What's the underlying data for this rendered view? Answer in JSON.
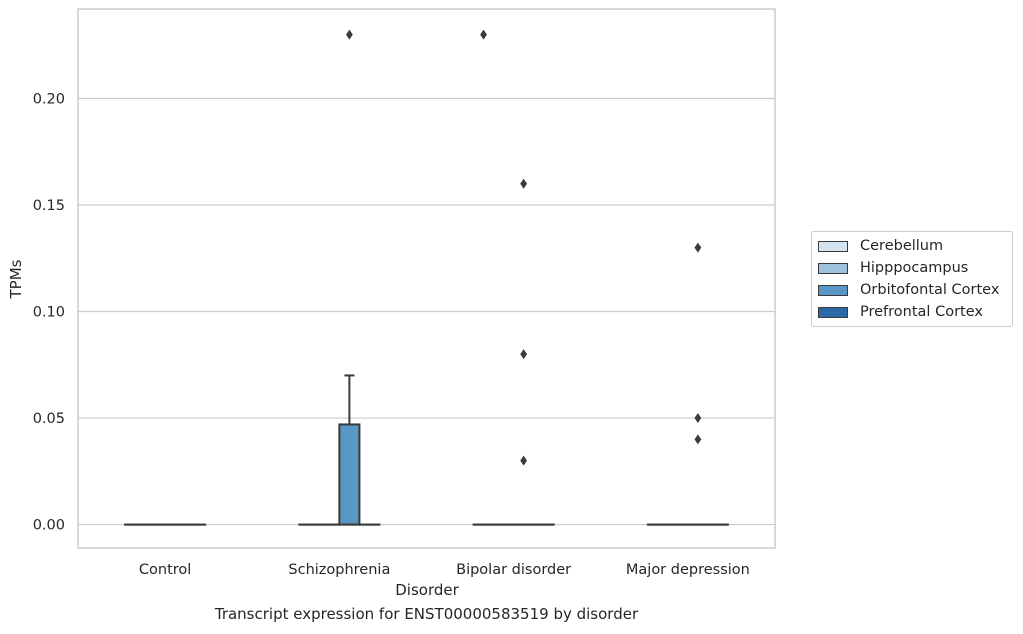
{
  "chart_data": {
    "type": "box",
    "xlabel": "Disorder",
    "ylabel": "TPMs",
    "categories": [
      "Control",
      "Schizophrenia",
      "Bipolar disorder",
      "Major depression"
    ],
    "ylim": [
      -0.011,
      0.242
    ],
    "yticks": [
      0.0,
      0.05,
      0.1,
      0.15,
      0.2
    ],
    "ytick_labels": [
      "0.00",
      "0.05",
      "0.10",
      "0.15",
      "0.20"
    ],
    "grid": true,
    "legend_position": "right",
    "series": [
      {
        "name": "Cerebellum",
        "color": "#d3e3f0",
        "boxes": [
          {
            "min": 0,
            "q1": 0,
            "median": 0,
            "q3": 0,
            "max": 0,
            "outliers": []
          },
          {
            "min": 0,
            "q1": 0,
            "median": 0,
            "q3": 0,
            "max": 0,
            "outliers": []
          },
          {
            "min": 0,
            "q1": 0,
            "median": 0,
            "q3": 0,
            "max": 0,
            "outliers": [
              0.23
            ]
          },
          {
            "min": 0,
            "q1": 0,
            "median": 0,
            "q3": 0,
            "max": 0,
            "outliers": []
          }
        ]
      },
      {
        "name": "Hipppocampus",
        "color": "#9dc3de",
        "boxes": [
          {
            "min": 0,
            "q1": 0,
            "median": 0,
            "q3": 0,
            "max": 0,
            "outliers": []
          },
          {
            "min": 0,
            "q1": 0,
            "median": 0,
            "q3": 0,
            "max": 0,
            "outliers": []
          },
          {
            "min": 0,
            "q1": 0,
            "median": 0,
            "q3": 0,
            "max": 0,
            "outliers": []
          },
          {
            "min": 0,
            "q1": 0,
            "median": 0,
            "q3": 0,
            "max": 0,
            "outliers": []
          }
        ]
      },
      {
        "name": "Orbitofontal Cortex",
        "color": "#5a97c4",
        "boxes": [
          {
            "min": 0,
            "q1": 0,
            "median": 0,
            "q3": 0,
            "max": 0,
            "outliers": []
          },
          {
            "min": 0,
            "q1": 0,
            "median": 0,
            "q3": 0.047,
            "max": 0.07,
            "outliers": [
              0.23
            ]
          },
          {
            "min": 0,
            "q1": 0,
            "median": 0,
            "q3": 0,
            "max": 0,
            "outliers": [
              0.16,
              0.08,
              0.03
            ]
          },
          {
            "min": 0,
            "q1": 0,
            "median": 0,
            "q3": 0,
            "max": 0,
            "outliers": [
              0.13,
              0.05,
              0.04
            ]
          }
        ]
      },
      {
        "name": "Prefrontal Cortex",
        "color": "#2b6aa6",
        "boxes": [
          {
            "min": 0,
            "q1": 0,
            "median": 0,
            "q3": 0,
            "max": 0,
            "outliers": []
          },
          {
            "min": 0,
            "q1": 0,
            "median": 0,
            "q3": 0,
            "max": 0,
            "outliers": []
          },
          {
            "min": 0,
            "q1": 0,
            "median": 0,
            "q3": 0,
            "max": 0,
            "outliers": []
          },
          {
            "min": 0,
            "q1": 0,
            "median": 0,
            "q3": 0,
            "max": 0,
            "outliers": []
          }
        ]
      }
    ]
  },
  "caption": "Transcript expression for ENST00000583519 by disorder"
}
